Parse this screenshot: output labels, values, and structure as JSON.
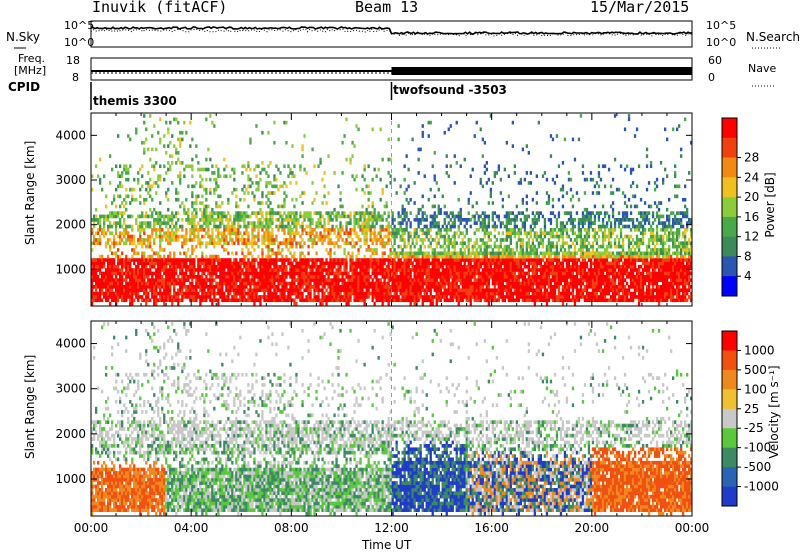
{
  "header": {
    "station": "Inuvik (fitACF)",
    "beam": "Beam 13",
    "date": "15/Mar/2015"
  },
  "noise_panel": {
    "left_label": "N.Sky",
    "right_label": "N.Search",
    "ticks_left": [
      "10^5",
      "10^0"
    ],
    "ticks_right": [
      "10^5",
      "10^0"
    ]
  },
  "freq_panel": {
    "left_label_line1": "Freq.",
    "left_label_line2": "[MHz]",
    "right_label": "Nave",
    "ticks_left": [
      "18",
      "8"
    ],
    "ticks_right": [
      "60",
      "0"
    ]
  },
  "cpid_panel": {
    "label": "CPID",
    "modes": [
      {
        "name": "themis 3300",
        "start_hour": 0
      },
      {
        "name": "twofsound -3503",
        "start_hour": 12
      }
    ]
  },
  "time_axis": {
    "label": "Time UT",
    "ticks": [
      "00:00",
      "04:00",
      "08:00",
      "12:00",
      "16:00",
      "20:00",
      "00:00"
    ]
  },
  "chart_data": [
    {
      "type": "heatmap",
      "name": "power",
      "xlabel": "",
      "ylabel": "Slant Range [km]",
      "yticks": [
        "1000",
        "2000",
        "3000",
        "4000"
      ],
      "xlim": [
        0,
        24
      ],
      "ylim": [
        180,
        4500
      ],
      "colorbar": {
        "label": "Power [dB]",
        "ticks": [
          "4",
          "8",
          "12",
          "16",
          "20",
          "24",
          "28"
        ],
        "colors": [
          "#0000ff",
          "#2a55b0",
          "#3b8a5a",
          "#49a848",
          "#8ccc3a",
          "#f0c020",
          "#f08a10",
          "#f04010",
          "#ff0000"
        ]
      }
    },
    {
      "type": "heatmap",
      "name": "velocity",
      "xlabel": "Time UT",
      "ylabel": "Slant Range [km]",
      "yticks": [
        "1000",
        "2000",
        "3000",
        "4000"
      ],
      "xlim": [
        0,
        24
      ],
      "ylim": [
        180,
        4500
      ],
      "colorbar": {
        "label": "Velocity [m s⁻¹]",
        "ticks": [
          "1000",
          "500",
          "100",
          "25",
          "-25",
          "-100",
          "-500",
          "-1000"
        ],
        "colors": [
          "#1e3cc8",
          "#2a64b4",
          "#3c8a64",
          "#5ac83c",
          "#c8c8c8",
          "#f0c030",
          "#f08820",
          "#f05010",
          "#ff0000"
        ]
      }
    }
  ]
}
